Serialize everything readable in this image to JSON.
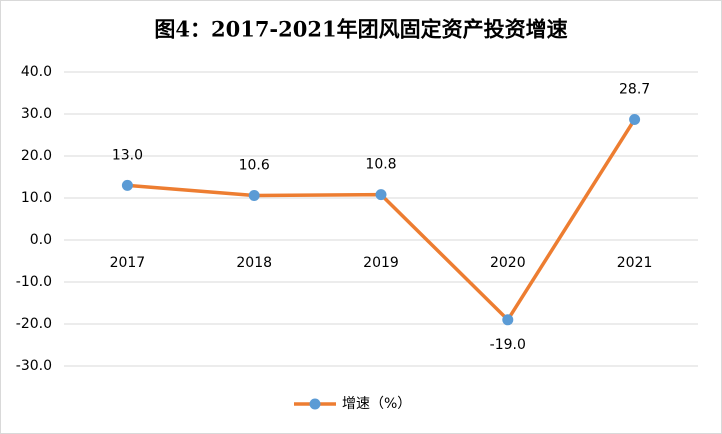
{
  "chart_data": {
    "type": "line",
    "title": "图4：2017-2021年团风固定资产投资增速",
    "categories": [
      "2017",
      "2018",
      "2019",
      "2020",
      "2021"
    ],
    "series": [
      {
        "name": "增速（%）",
        "color": "#ED7D31",
        "marker_color": "#5B9BD5",
        "values": [
          13.0,
          10.6,
          10.8,
          -19.0,
          28.7
        ],
        "value_labels": [
          "13.0",
          "10.6",
          "10.8",
          "-19.0",
          "28.7"
        ]
      }
    ],
    "ylim": [
      -30,
      40
    ],
    "yticks": [
      {
        "value": -30,
        "label": "-30.0"
      },
      {
        "value": -20,
        "label": "-20.0"
      },
      {
        "value": -10,
        "label": "-10.0"
      },
      {
        "value": 0,
        "label": "0.0"
      },
      {
        "value": 10,
        "label": "10.0"
      },
      {
        "value": 20,
        "label": "20.0"
      },
      {
        "value": 30,
        "label": "30.0"
      },
      {
        "value": 40,
        "label": "40.0"
      }
    ],
    "grid": true,
    "legend": "bottom"
  }
}
